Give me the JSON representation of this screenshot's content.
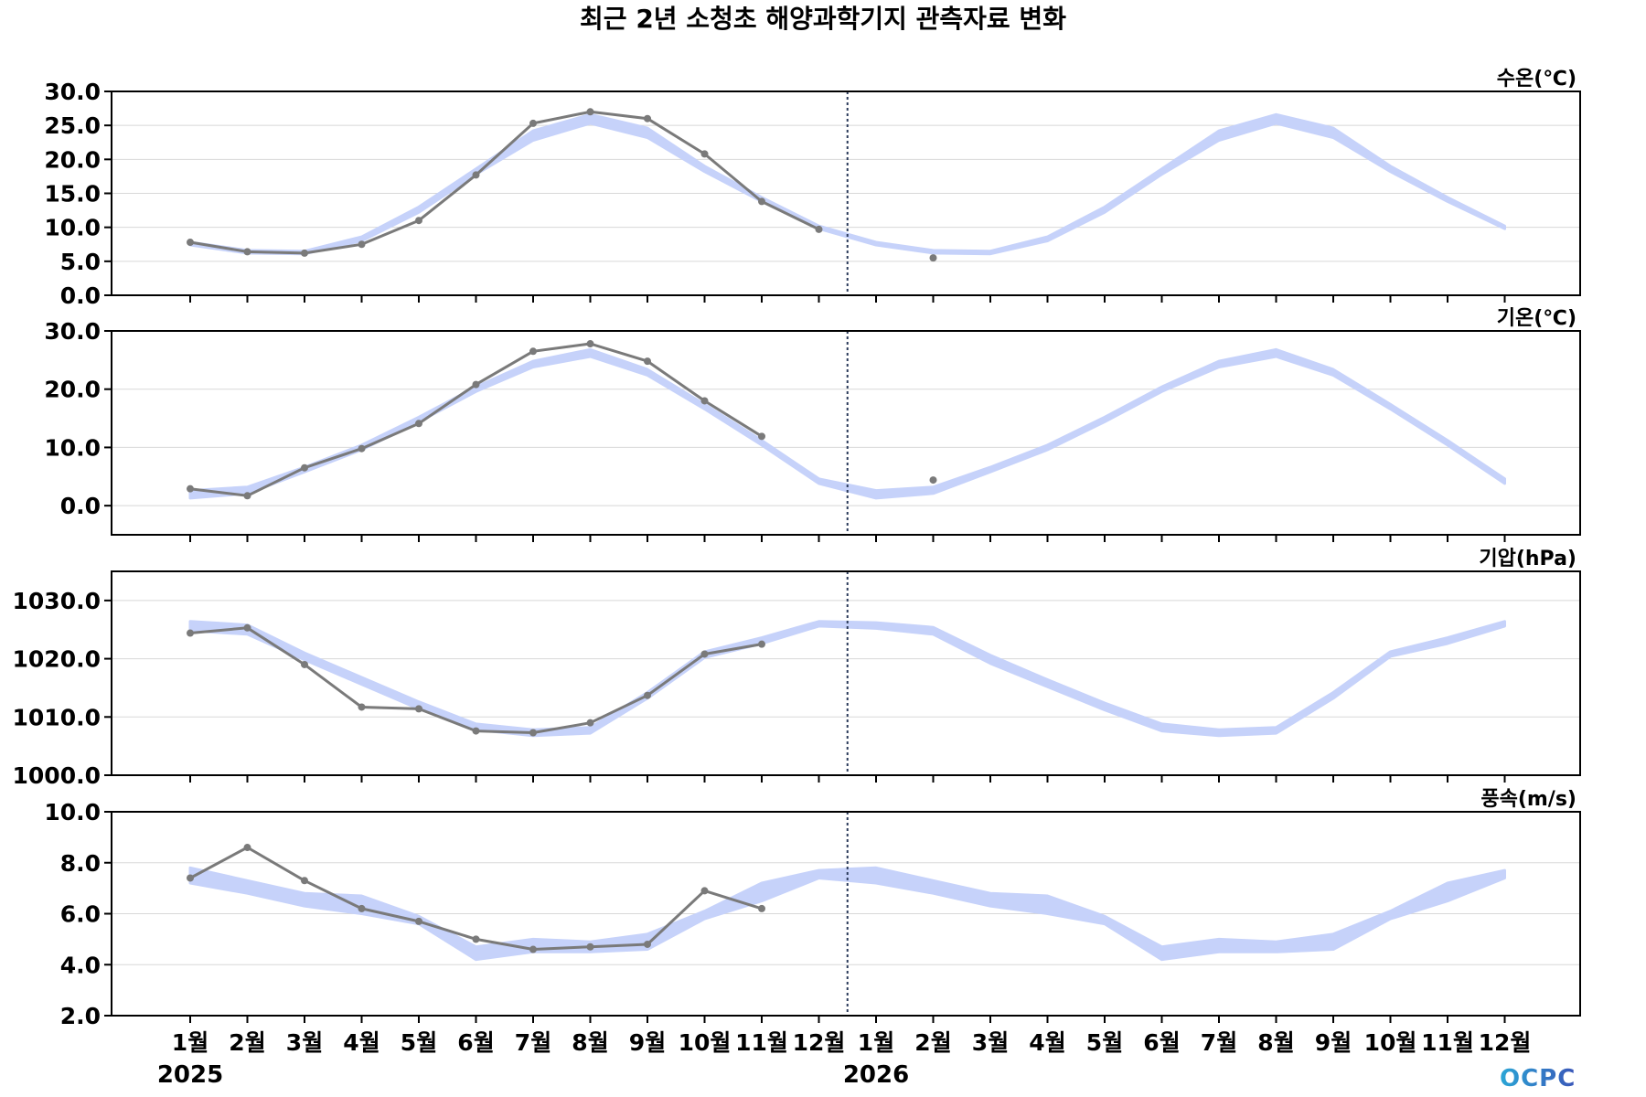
{
  "title": "최근 2년 소청초 해양과학기지 관측자료 변화",
  "logo_text": "OCPC",
  "colors": {
    "band": "#c6d2fa",
    "obs": "#7a7a7a",
    "axis": "#000000",
    "grid": "#d8d8d8",
    "divider": "#2b3a5a",
    "logo_start": "#2ba6d6",
    "logo_end": "#3a56b8"
  },
  "chart_data": {
    "type": "line",
    "x_labels": [
      "1월",
      "2월",
      "3월",
      "4월",
      "5월",
      "6월",
      "7월",
      "8월",
      "9월",
      "10월",
      "11월",
      "12월",
      "1월",
      "2월",
      "3월",
      "4월",
      "5월",
      "6월",
      "7월",
      "8월",
      "9월",
      "10월",
      "11월",
      "12월"
    ],
    "year_labels": [
      {
        "label": "2025",
        "index": 0
      },
      {
        "label": "2026",
        "index": 12
      }
    ],
    "divider_after_index": 11,
    "panels": [
      {
        "label": "수온(℃)",
        "ylim": [
          0,
          30
        ],
        "yticks": [
          0,
          5,
          10,
          15,
          20,
          25,
          30
        ],
        "ytick_labels": [
          "0.0",
          "5.0",
          "10.0",
          "15.0",
          "20.0",
          "25.0",
          "30.0"
        ],
        "band_low": [
          7.4,
          6.2,
          6.1,
          8.0,
          12.2,
          17.8,
          22.8,
          25.3,
          23.2,
          18.2,
          13.8,
          9.8,
          7.4,
          6.2,
          6.1,
          8.0,
          12.2,
          17.8,
          22.8,
          25.3,
          23.2,
          18.2,
          13.8,
          9.8
        ],
        "band_high": [
          7.8,
          6.6,
          6.5,
          8.6,
          13.0,
          18.6,
          24.2,
          26.6,
          24.6,
          19.0,
          14.4,
          10.2,
          7.8,
          6.6,
          6.5,
          8.6,
          13.0,
          18.6,
          24.2,
          26.6,
          24.6,
          19.0,
          14.4,
          10.2
        ],
        "obs": [
          7.8,
          6.4,
          6.2,
          7.5,
          11.0,
          17.7,
          25.3,
          27.0,
          26.0,
          20.8,
          13.8,
          9.7
        ],
        "obs_extra": [
          {
            "index": 13,
            "value": 5.5
          }
        ]
      },
      {
        "label": "기온(℃)",
        "ylim": [
          -5,
          30
        ],
        "yticks": [
          0,
          10,
          20,
          30
        ],
        "ytick_labels": [
          "0.0",
          "10.0",
          "20.0",
          "30.0"
        ],
        "band_low": [
          1.3,
          2.1,
          5.8,
          9.6,
          14.4,
          19.6,
          23.8,
          25.6,
          22.4,
          16.6,
          10.4,
          3.8,
          1.3,
          2.1,
          5.8,
          9.6,
          14.4,
          19.6,
          23.8,
          25.6,
          22.4,
          16.6,
          10.4,
          3.8
        ],
        "band_high": [
          2.6,
          3.2,
          6.6,
          10.4,
          15.2,
          20.4,
          24.8,
          26.8,
          23.4,
          17.4,
          11.2,
          4.6,
          2.6,
          3.2,
          6.6,
          10.4,
          15.2,
          20.4,
          24.8,
          26.8,
          23.4,
          17.4,
          11.2,
          4.6
        ],
        "obs": [
          2.9,
          1.7,
          6.5,
          9.8,
          14.1,
          20.8,
          26.5,
          27.8,
          24.8,
          18.0,
          11.9
        ],
        "obs_extra": [
          {
            "index": 13,
            "value": 4.4
          }
        ]
      },
      {
        "label": "기압(hPa)",
        "ylim": [
          1000,
          1035
        ],
        "yticks": [
          1000,
          1010,
          1020,
          1030
        ],
        "ytick_labels": [
          "1000.0",
          "1010.0",
          "1020.0",
          "1030.0"
        ],
        "band_low": [
          1024.8,
          1024.2,
          1019.8,
          1015.6,
          1011.4,
          1007.8,
          1006.8,
          1007.2,
          1013.2,
          1020.2,
          1022.6,
          1025.6,
          1025.2,
          1024.2,
          1019.2,
          1015.2,
          1011.2,
          1007.6,
          1006.8,
          1007.2,
          1013.2,
          1020.4,
          1022.6,
          1025.6
        ],
        "band_high": [
          1026.4,
          1025.8,
          1021.0,
          1016.8,
          1012.6,
          1008.8,
          1007.8,
          1008.2,
          1014.2,
          1021.2,
          1023.6,
          1026.4,
          1026.2,
          1025.4,
          1020.6,
          1016.4,
          1012.4,
          1008.8,
          1007.8,
          1008.2,
          1014.2,
          1021.2,
          1023.6,
          1026.4
        ],
        "obs": [
          1024.4,
          1025.3,
          1019.0,
          1011.7,
          1011.4,
          1007.6,
          1007.3,
          1009.0,
          1013.7,
          1020.8,
          1022.5
        ]
      },
      {
        "label": "풍속(m/s)",
        "ylim": [
          2,
          10
        ],
        "yticks": [
          2,
          4,
          6,
          8,
          10
        ],
        "ytick_labels": [
          "2.0",
          "4.0",
          "6.0",
          "8.0",
          "10.0"
        ],
        "band_low": [
          7.2,
          6.8,
          6.3,
          6.0,
          5.6,
          4.2,
          4.5,
          4.5,
          4.6,
          5.8,
          6.5,
          7.4,
          7.2,
          6.8,
          6.3,
          6.0,
          5.6,
          4.2,
          4.5,
          4.5,
          4.6,
          5.8,
          6.5,
          7.4
        ],
        "band_high": [
          7.8,
          7.3,
          6.8,
          6.7,
          5.9,
          4.7,
          5.0,
          4.9,
          5.2,
          6.1,
          7.2,
          7.7,
          7.8,
          7.3,
          6.8,
          6.7,
          5.9,
          4.7,
          5.0,
          4.9,
          5.2,
          6.1,
          7.2,
          7.7
        ],
        "obs": [
          7.4,
          8.6,
          7.3,
          6.2,
          5.7,
          5.0,
          4.6,
          4.7,
          4.8,
          6.9,
          6.2
        ]
      }
    ]
  }
}
